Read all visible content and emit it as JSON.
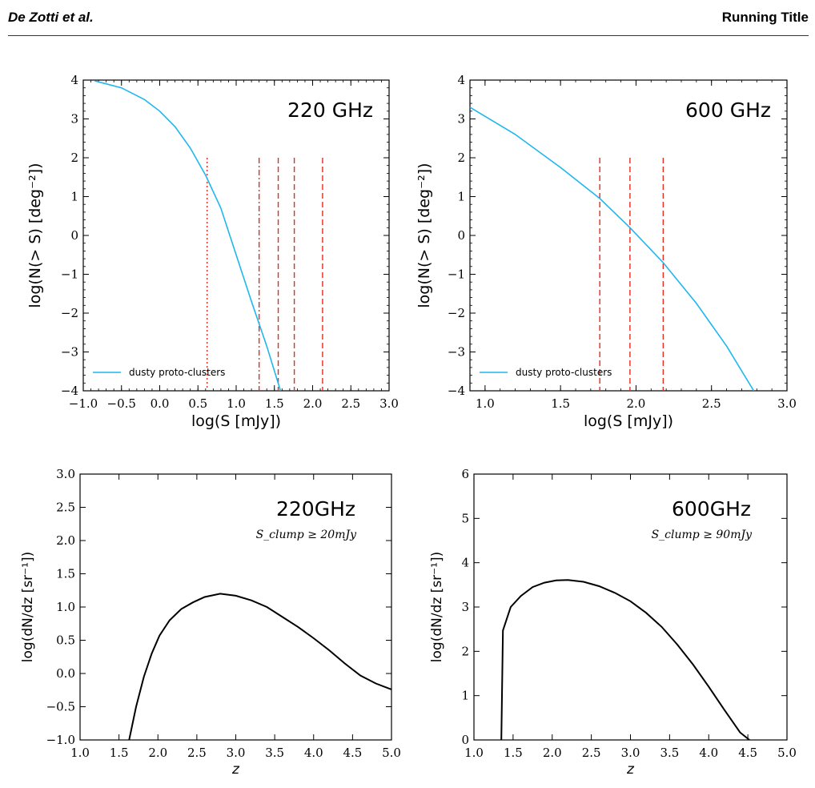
{
  "header": {
    "author": "De Zotti et al.",
    "running_title": "Running Title"
  },
  "chart_data": [
    {
      "type": "line",
      "annotation": "220 GHz",
      "xlabel": "log(S [mJy])",
      "ylabel": "log(N(> S) [deg⁻²])",
      "xlim": [
        -1.0,
        3.0
      ],
      "ylim": [
        -4,
        4
      ],
      "xticks": [
        "−1.0",
        "−0.5",
        "0.0",
        "0.5",
        "1.0",
        "1.5",
        "2.0",
        "2.5",
        "3.0"
      ],
      "yticks": [
        "−4",
        "−3",
        "−2",
        "−1",
        "0",
        "1",
        "2",
        "3",
        "4"
      ],
      "legend": {
        "entries": [
          "dusty proto-clusters"
        ],
        "placement": "lower-left"
      },
      "series": [
        {
          "name": "dusty proto-clusters",
          "color": "#1fb6f0",
          "x": [
            -0.85,
            -0.5,
            -0.2,
            0.0,
            0.2,
            0.4,
            0.6,
            0.8,
            1.0,
            1.2,
            1.4,
            1.58
          ],
          "y": [
            3.98,
            3.8,
            3.5,
            3.2,
            2.8,
            2.25,
            1.55,
            0.7,
            -0.5,
            -1.7,
            -2.85,
            -4.0
          ]
        }
      ],
      "vlines": [
        {
          "x": 0.62,
          "style": "dotted",
          "color": "#e8291c"
        },
        {
          "x": 1.3,
          "style": "dashdot",
          "color": "#e8291c"
        },
        {
          "x": 1.55,
          "style": "dashed",
          "color": "#e8291c"
        },
        {
          "x": 1.76,
          "style": "dashed",
          "color": "#e8291c"
        },
        {
          "x": 2.13,
          "style": "dashed",
          "color": "#e8291c"
        }
      ]
    },
    {
      "type": "line",
      "annotation": "600 GHz",
      "xlabel": "log(S [mJy])",
      "ylabel": "log(N(> S) [deg⁻²])",
      "xlim": [
        0.9,
        3.0
      ],
      "ylim": [
        -4,
        4
      ],
      "xticks": [
        "1.0",
        "1.5",
        "2.0",
        "2.5",
        "3.0"
      ],
      "yticks": [
        "−4",
        "−3",
        "−2",
        "−1",
        "0",
        "1",
        "2",
        "3",
        "4"
      ],
      "legend": {
        "entries": [
          "dusty proto-clusters"
        ],
        "placement": "lower-left"
      },
      "series": [
        {
          "name": "dusty proto-clusters",
          "color": "#1fb6f0",
          "x": [
            0.9,
            1.2,
            1.5,
            1.76,
            1.96,
            2.18,
            2.4,
            2.6,
            2.78
          ],
          "y": [
            3.3,
            2.6,
            1.75,
            0.95,
            0.2,
            -0.7,
            -1.75,
            -2.85,
            -4.0
          ]
        }
      ],
      "vlines": [
        {
          "x": 1.76,
          "style": "dashed",
          "color": "#e8291c"
        },
        {
          "x": 1.96,
          "style": "dashed",
          "color": "#e8291c"
        },
        {
          "x": 2.18,
          "style": "dashed",
          "color": "#e8291c"
        }
      ]
    },
    {
      "type": "line",
      "annotation": "220GHz",
      "sclump_label": "S_clump ≥ 20mJy",
      "xlabel": "z",
      "ylabel": "log(dN/dz [sr⁻¹])",
      "xlim": [
        1.0,
        5.0
      ],
      "ylim": [
        -1.0,
        3.0
      ],
      "xticks": [
        "1.0",
        "1.5",
        "2.0",
        "2.5",
        "3.0",
        "3.5",
        "4.0",
        "4.5",
        "5.0"
      ],
      "yticks": [
        "−1.0",
        "−0.5",
        "0.0",
        "0.5",
        "1.0",
        "1.5",
        "2.0",
        "2.5",
        "3.0"
      ],
      "series": [
        {
          "color": "#000000",
          "x": [
            1.63,
            1.72,
            1.82,
            1.92,
            2.02,
            2.15,
            2.3,
            2.45,
            2.6,
            2.8,
            3.0,
            3.2,
            3.4,
            3.6,
            3.8,
            4.0,
            4.2,
            4.4,
            4.6,
            4.8,
            5.0
          ],
          "y": [
            -1.0,
            -0.5,
            -0.05,
            0.3,
            0.57,
            0.8,
            0.97,
            1.07,
            1.15,
            1.2,
            1.17,
            1.1,
            1.0,
            0.85,
            0.7,
            0.53,
            0.35,
            0.15,
            -0.03,
            -0.15,
            -0.24
          ]
        }
      ]
    },
    {
      "type": "line",
      "annotation": "600GHz",
      "sclump_label": "S_clump ≥ 90mJy",
      "xlabel": "z",
      "ylabel": "log(dN/dz [sr⁻¹])",
      "xlim": [
        1.0,
        5.0
      ],
      "ylim": [
        0,
        6
      ],
      "xticks": [
        "1.0",
        "1.5",
        "2.0",
        "2.5",
        "3.0",
        "3.5",
        "4.0",
        "4.5",
        "5.0"
      ],
      "yticks": [
        "0",
        "1",
        "2",
        "3",
        "4",
        "5",
        "6"
      ],
      "series": [
        {
          "color": "#000000",
          "x": [
            1.35,
            1.37,
            1.47,
            1.6,
            1.75,
            1.9,
            2.05,
            2.2,
            2.4,
            2.6,
            2.8,
            3.0,
            3.2,
            3.4,
            3.6,
            3.8,
            4.0,
            4.2,
            4.4,
            4.52
          ],
          "y": [
            0.0,
            2.47,
            3.0,
            3.25,
            3.45,
            3.55,
            3.6,
            3.61,
            3.57,
            3.47,
            3.32,
            3.13,
            2.87,
            2.55,
            2.15,
            1.7,
            1.2,
            0.68,
            0.17,
            0.0
          ]
        }
      ]
    }
  ]
}
